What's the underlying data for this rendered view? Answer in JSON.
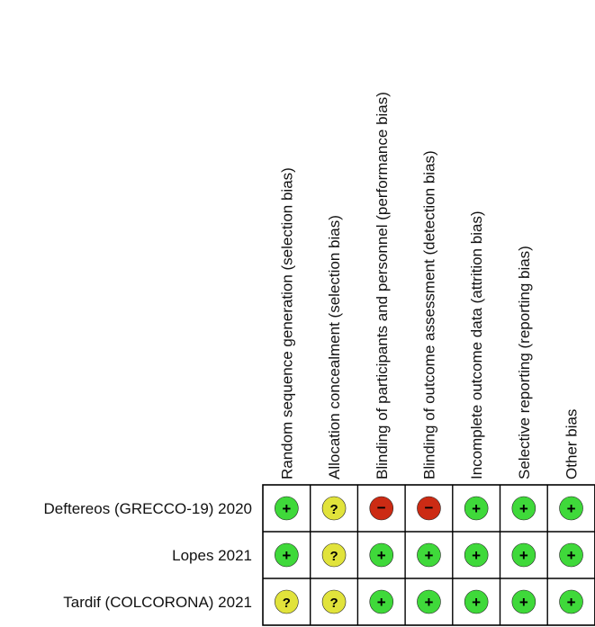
{
  "domains": [
    "Random sequence generation (selection bias)",
    "Allocation concealment (selection bias)",
    "Blinding of participants and personnel (performance bias)",
    "Blinding of outcome assessment (detection bias)",
    "Incomplete outcome data (attrition bias)",
    "Selective reporting (reporting bias)",
    "Other bias"
  ],
  "studies": [
    {
      "name": "Deftereos (GRECCO-19) 2020",
      "judgements": [
        "low",
        "unclear",
        "high",
        "high",
        "low",
        "low",
        "low"
      ]
    },
    {
      "name": "Lopes 2021",
      "judgements": [
        "low",
        "unclear",
        "low",
        "low",
        "low",
        "low",
        "low"
      ]
    },
    {
      "name": "Tardif (COLCORONA) 2021",
      "judgements": [
        "unclear",
        "unclear",
        "low",
        "low",
        "low",
        "low",
        "low"
      ]
    }
  ],
  "legend": {
    "low": {
      "symbol": "+",
      "color": "#3fd93a"
    },
    "unclear": {
      "symbol": "?",
      "color": "#e1e33b"
    },
    "high": {
      "symbol": "−",
      "color": "#cc2b14"
    }
  }
}
